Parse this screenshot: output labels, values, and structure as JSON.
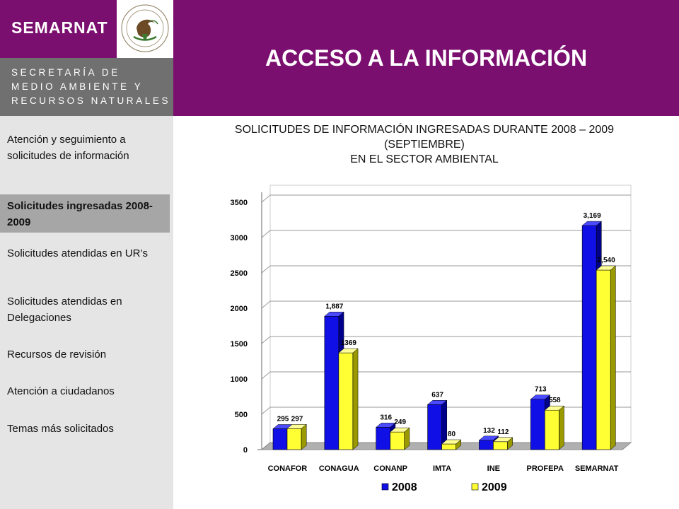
{
  "header": {
    "brand": "SEMARNAT",
    "org_lines": [
      "SECRETARÍA DE",
      "MEDIO AMBIENTE Y",
      "RECURSOS NATURALES"
    ],
    "seal_text": "ESTADOS UNIDOS MEXICANOS",
    "page_title": "ACCESO A LA INFORMACIÓN"
  },
  "sidebar": {
    "items": [
      {
        "label": "Atención y seguimiento a solicitudes de información"
      },
      {
        "label": "Solicitudes ingresadas 2008-2009",
        "active": true
      },
      {
        "label": "Solicitudes atendidas en UR’s"
      },
      {
        "label": "Solicitudes atendidas en Delegaciones"
      },
      {
        "label": "Recursos de revisión"
      },
      {
        "label": "Atención a ciudadanos"
      },
      {
        "label": "Temas más solicitados"
      }
    ]
  },
  "colors": {
    "header_purple": "#7b0f6f",
    "header_gray": "#707070",
    "sidebar_bg": "#e5e5e5",
    "sidebar_active": "#a6a6a6",
    "series_2008": "#1010e6",
    "series_2009": "#ffff33"
  },
  "chart_data": {
    "type": "bar",
    "title_lines": [
      "SOLICITUDES DE INFORMACIÓN INGRESADAS DURANTE 2008 – 2009",
      "(SEPTIEMBRE)",
      "EN EL SECTOR AMBIENTAL"
    ],
    "categories": [
      "CONAFOR",
      "CONAGUA",
      "CONANP",
      "IMTA",
      "INE",
      "PROFEPA",
      "SEMARNAT"
    ],
    "series": [
      {
        "name": "2008",
        "values": [
          295,
          1887,
          316,
          637,
          132,
          713,
          3169
        ],
        "labels": [
          "295",
          "1,887",
          "316",
          "637",
          "132",
          "713",
          "3,169"
        ]
      },
      {
        "name": "2009",
        "values": [
          297,
          1369,
          249,
          80,
          112,
          558,
          2540
        ],
        "labels": [
          "297",
          "1369",
          "249",
          "80",
          "112",
          "558",
          "2,540"
        ]
      }
    ],
    "y_ticks": [
      "0",
      "500",
      "1000",
      "1500",
      "2000",
      "2500",
      "3000",
      "3500"
    ],
    "ylim": [
      0,
      3500
    ],
    "grid": true,
    "legend_position": "bottom",
    "style": "3d"
  }
}
